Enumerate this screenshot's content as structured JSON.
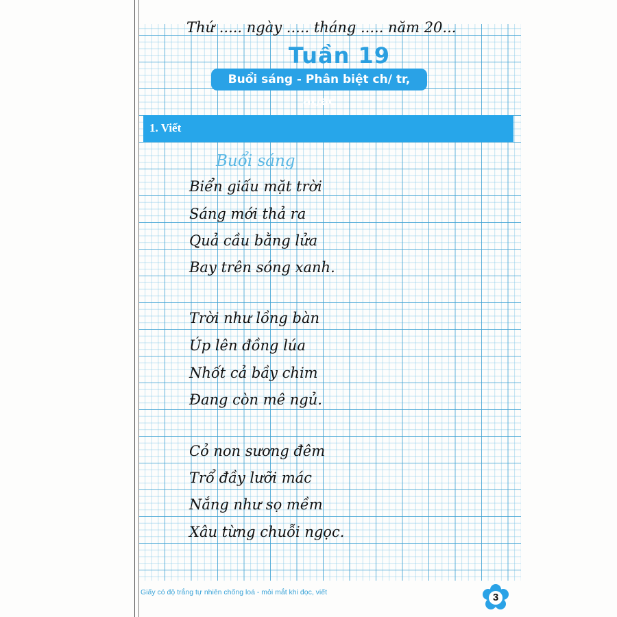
{
  "header": {
    "date_line": "Thứ ..... ngày ..... tháng ..... năm 20...",
    "week": "Tuần 19",
    "lesson": "Buổi sáng - Phân biệt ch/ tr, at/ac"
  },
  "section": {
    "title": "1. Viết"
  },
  "poem": {
    "title": "Buổi sáng",
    "lines": [
      "Biển giấu mặt trời",
      "Sáng mới thả ra",
      "Quả cầu bằng lửa",
      "Bay trên sóng xanh.",
      "Trời như lồng bàn",
      "Úp lên đồng lúa",
      "Nhốt cả bầy chim",
      "Đang còn mê ngủ.",
      "Cỏ non sương đêm",
      "Trổ đầy lưỡi mác",
      "Nắng như sọ mềm",
      "Xâu từng chuỗi ngọc."
    ]
  },
  "footer": {
    "note": "Giấy có độ trắng tự nhiên chống loá - mỏi mắt khi đọc, viết",
    "page_number": "3",
    "page_badge_icon": "flower-icon"
  },
  "colors": {
    "accent": "#27a6ea",
    "grid": "#3ca0d2",
    "title_blue": "#2a9fe0"
  }
}
